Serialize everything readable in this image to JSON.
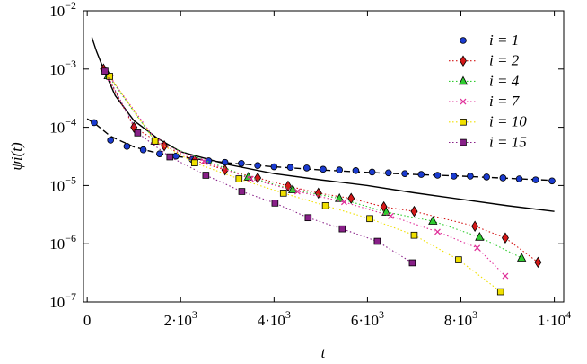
{
  "chart_data": {
    "type": "line",
    "xlabel": "t",
    "ylabel": "ψi(t)",
    "xlim": [
      -80,
      10200
    ],
    "ylim": [
      1e-07,
      0.01
    ],
    "ylog": true,
    "legend": "upper right",
    "xticks": [
      0,
      {
        "value": 2000,
        "label": "2·10",
        "exponent": "3"
      },
      {
        "value": 4000,
        "label": "4·10",
        "exponent": "3"
      },
      {
        "value": 6000,
        "label": "6·10",
        "exponent": "3"
      },
      {
        "value": 8000,
        "label": "8·10",
        "exponent": "3"
      },
      {
        "value": 10000,
        "label": "1·10",
        "exponent": "4"
      }
    ],
    "yticks": [
      {
        "value": 1e-07,
        "label": "10",
        "exponent": "−7"
      },
      {
        "value": 1e-06,
        "label": "10",
        "exponent": "−6"
      },
      {
        "value": 1e-05,
        "label": "10",
        "exponent": "−5"
      },
      {
        "value": 0.0001,
        "label": "10",
        "exponent": "−4"
      },
      {
        "value": 0.001,
        "label": "10",
        "exponent": "−3"
      },
      {
        "value": 0.01,
        "label": "10",
        "exponent": "−2"
      }
    ],
    "series": [
      {
        "color": "#000000",
        "line": "solid",
        "marker": "none",
        "x": [
          100,
          200,
          350,
          600,
          1000,
          1500,
          2000,
          3000,
          4000,
          5000,
          6000,
          7000,
          8000,
          9000,
          10000
        ],
        "values": [
          0.0035,
          0.002,
          0.001,
          0.00035,
          0.00013,
          6.5e-05,
          3.8e-05,
          2.3e-05,
          1.6e-05,
          1.25e-05,
          1e-05,
          7.5e-06,
          5.8e-06,
          4.5e-06,
          3.6e-06
        ]
      },
      {
        "color": "#000000",
        "line": "dashed",
        "marker": "none",
        "x": [
          0,
          200,
          500,
          1000,
          1500,
          2000,
          3000,
          4000,
          5000,
          6000,
          7000,
          8000,
          9000,
          10000
        ],
        "values": [
          0.00014,
          0.00011,
          7e-05,
          4.6e-05,
          3.6e-05,
          3.1e-05,
          2.45e-05,
          2.1e-05,
          1.85e-05,
          1.68e-05,
          1.55e-05,
          1.45e-05,
          1.33e-05,
          1.22e-05
        ]
      },
      {
        "name": "i = 1",
        "color": "#1a3bd0",
        "line": "none",
        "marker": "circle",
        "x": [
          150,
          500,
          850,
          1200,
          1550,
          1900,
          2250,
          2600,
          2950,
          3300,
          3650,
          4000,
          4350,
          4700,
          5050,
          5400,
          5750,
          6100,
          6450,
          6800,
          7150,
          7500,
          7850,
          8200,
          8550,
          8900,
          9250,
          9600,
          9950
        ],
        "values": [
          0.00012,
          6e-05,
          4.7e-05,
          4.1e-05,
          3.5e-05,
          3.2e-05,
          2.8e-05,
          2.65e-05,
          2.5e-05,
          2.4e-05,
          2.2e-05,
          2.1e-05,
          2.05e-05,
          2e-05,
          1.9e-05,
          1.85e-05,
          1.8e-05,
          1.7e-05,
          1.65e-05,
          1.6e-05,
          1.55e-05,
          1.5e-05,
          1.45e-05,
          1.45e-05,
          1.4e-05,
          1.35e-05,
          1.3e-05,
          1.25e-05,
          1.2e-05
        ]
      },
      {
        "name": "i = 2",
        "color": "#d41818",
        "line": "dotted",
        "marker": "diamond",
        "x": [
          350,
          1000,
          1650,
          2300,
          2950,
          3650,
          4300,
          4950,
          5650,
          6350,
          7000,
          8300,
          8950,
          9650
        ],
        "values": [
          0.001,
          0.0001,
          4.8e-05,
          2.7e-05,
          1.85e-05,
          1.35e-05,
          9.8e-06,
          7.4e-06,
          6e-06,
          4.3e-06,
          3.6e-06,
          2e-06,
          1.26e-06,
          4.8e-07
        ]
      },
      {
        "name": "i = 4",
        "color": "#30cc30",
        "line": "dotted",
        "marker": "triangle",
        "x": [
          450,
          1450,
          3450,
          4400,
          5400,
          6400,
          7400,
          8400,
          9300
        ],
        "values": [
          0.00077,
          5.8e-05,
          1.4e-05,
          8.5e-06,
          6e-06,
          3.5e-06,
          2.45e-06,
          1.3e-06,
          5.7e-07
        ]
      },
      {
        "name": "i = 7",
        "color": "#e0309a",
        "line": "dotted",
        "marker": "x",
        "x": [
          500,
          1500,
          2500,
          3500,
          4500,
          5500,
          6500,
          7500,
          8350,
          8950
        ],
        "values": [
          0.0007,
          5.6e-05,
          2.6e-05,
          1.3e-05,
          7.9e-06,
          5.2e-06,
          3e-06,
          1.6e-06,
          8.5e-07,
          2.8e-07
        ]
      },
      {
        "name": "i = 10",
        "color": "#f0e000",
        "line": "dotted",
        "marker": "square",
        "x": [
          480,
          1450,
          2300,
          3250,
          4200,
          5100,
          6050,
          7000,
          7950,
          8850
        ],
        "values": [
          0.00075,
          5.8e-05,
          2.45e-05,
          1.3e-05,
          7.4e-06,
          4.5e-06,
          2.7e-06,
          1.4e-06,
          5.3e-07,
          1.5e-07
        ]
      },
      {
        "name": "i = 15",
        "color": "#882088",
        "line": "dotted",
        "marker": "square",
        "x": [
          380,
          1080,
          1770,
          2540,
          3310,
          4020,
          4730,
          5460,
          6210,
          6960
        ],
        "values": [
          0.00092,
          8e-05,
          3.1e-05,
          1.5e-05,
          7.9e-06,
          5e-06,
          2.8e-06,
          1.8e-06,
          1.1e-06,
          4.7e-07
        ]
      }
    ]
  }
}
